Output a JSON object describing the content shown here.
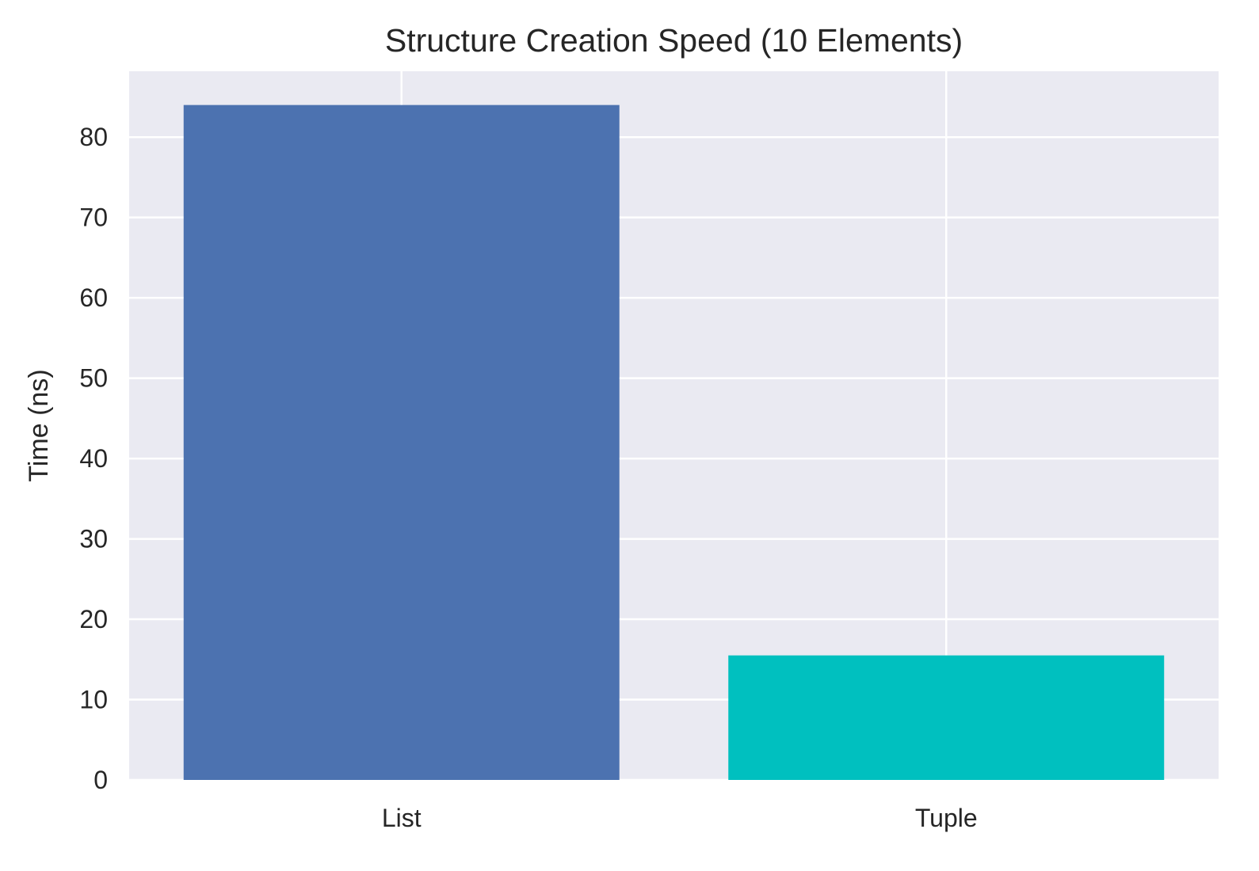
{
  "chart_data": {
    "type": "bar",
    "title": "Structure Creation Speed (10 Elements)",
    "xlabel": "",
    "ylabel": "Time (ns)",
    "categories": [
      "List",
      "Tuple"
    ],
    "values": [
      84,
      15.5
    ],
    "ylim": [
      0,
      88.2
    ],
    "yticks": [
      0,
      10,
      20,
      30,
      40,
      50,
      60,
      70,
      80
    ],
    "grid": true,
    "legend": "none",
    "colors": {
      "background": "#eaeaf2",
      "grid": "#ffffff",
      "bars": [
        "#4c72b0",
        "#00c0bf"
      ]
    }
  }
}
